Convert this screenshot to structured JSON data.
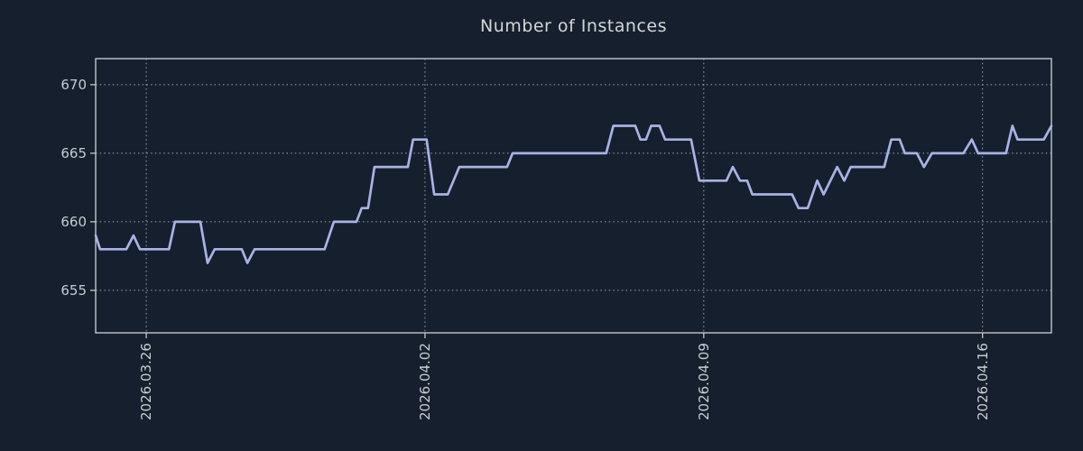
{
  "chart_data": {
    "type": "line",
    "title": "Number of Instances",
    "xlabel": "",
    "ylabel": "",
    "legend": "none",
    "grid": "dotted",
    "x_unit": "days-since-plot-left-edge",
    "xlim": [
      0,
      24
    ],
    "ylim": [
      651.9,
      671.9
    ],
    "x_ticks": [
      {
        "t": 1.27,
        "label": "2026.03.26"
      },
      {
        "t": 8.27,
        "label": "2026.04.02"
      },
      {
        "t": 15.27,
        "label": "2026.04.09"
      },
      {
        "t": 22.27,
        "label": "2026.04.16"
      }
    ],
    "y_ticks": [
      {
        "v": 655,
        "label": "655"
      },
      {
        "v": 660,
        "label": "660"
      },
      {
        "v": 665,
        "label": "665"
      },
      {
        "v": 670,
        "label": "670"
      }
    ],
    "series": [
      {
        "name": "instances",
        "color": "#a9b2e5",
        "points": [
          [
            0.0,
            659
          ],
          [
            0.11,
            658
          ],
          [
            0.77,
            658
          ],
          [
            0.95,
            659
          ],
          [
            1.11,
            658
          ],
          [
            1.84,
            658
          ],
          [
            1.99,
            660
          ],
          [
            2.63,
            660
          ],
          [
            2.81,
            657
          ],
          [
            2.99,
            658
          ],
          [
            3.67,
            658
          ],
          [
            3.81,
            657
          ],
          [
            3.99,
            658
          ],
          [
            5.75,
            658
          ],
          [
            5.98,
            660
          ],
          [
            6.55,
            660
          ],
          [
            6.68,
            661
          ],
          [
            6.84,
            661
          ],
          [
            7.0,
            664
          ],
          [
            7.84,
            664
          ],
          [
            7.97,
            666
          ],
          [
            8.31,
            666
          ],
          [
            8.5,
            662
          ],
          [
            8.84,
            662
          ],
          [
            9.13,
            664
          ],
          [
            10.33,
            664
          ],
          [
            10.47,
            665
          ],
          [
            12.82,
            665
          ],
          [
            13.0,
            667
          ],
          [
            13.55,
            667
          ],
          [
            13.68,
            666
          ],
          [
            13.82,
            666
          ],
          [
            13.95,
            667
          ],
          [
            14.16,
            667
          ],
          [
            14.3,
            666
          ],
          [
            14.95,
            666
          ],
          [
            15.16,
            663
          ],
          [
            15.84,
            663
          ],
          [
            16.0,
            664
          ],
          [
            16.18,
            663
          ],
          [
            16.36,
            663
          ],
          [
            16.49,
            662
          ],
          [
            17.49,
            662
          ],
          [
            17.65,
            661
          ],
          [
            17.88,
            661
          ],
          [
            18.12,
            663
          ],
          [
            18.28,
            662
          ],
          [
            18.62,
            664
          ],
          [
            18.8,
            663
          ],
          [
            18.96,
            664
          ],
          [
            19.8,
            664
          ],
          [
            19.98,
            666
          ],
          [
            20.19,
            666
          ],
          [
            20.32,
            665
          ],
          [
            20.62,
            665
          ],
          [
            20.8,
            664
          ],
          [
            21.0,
            665
          ],
          [
            21.79,
            665
          ],
          [
            22.0,
            666
          ],
          [
            22.16,
            665
          ],
          [
            22.86,
            665
          ],
          [
            23.02,
            667
          ],
          [
            23.15,
            666
          ],
          [
            23.81,
            666
          ],
          [
            24.0,
            667
          ]
        ]
      }
    ],
    "colors": {
      "background": "#161f2d",
      "line": "#a9b2e5",
      "spine": "#c3c7cd",
      "grid": "#b9bfc7",
      "title_text": "#d3d6d9",
      "tick_text": "#c8ccd1"
    }
  }
}
